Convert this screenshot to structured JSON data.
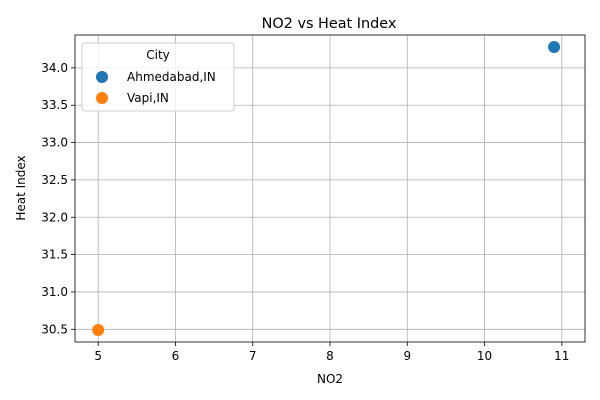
{
  "chart_data": {
    "type": "scatter",
    "title": "NO2 vs Heat Index",
    "xlabel": "NO2",
    "ylabel": "Heat Index",
    "xlim": [
      4.7,
      11.3
    ],
    "ylim": [
      30.33,
      34.44
    ],
    "xticks": [
      "5",
      "6",
      "7",
      "8",
      "9",
      "10",
      "11"
    ],
    "yticks": [
      "30.5",
      "31.0",
      "31.5",
      "32.0",
      "32.5",
      "33.0",
      "33.5",
      "34.0"
    ],
    "grid": true,
    "legend": {
      "title": "City",
      "placement": "top-left"
    },
    "series": [
      {
        "name": "Ahmedabad,IN",
        "color": "#1f77b4",
        "points": [
          {
            "x": 10.9,
            "y": 34.28
          }
        ]
      },
      {
        "name": "Vapi,IN",
        "color": "#ff7f0e",
        "points": [
          {
            "x": 5.0,
            "y": 30.49
          }
        ]
      }
    ]
  }
}
